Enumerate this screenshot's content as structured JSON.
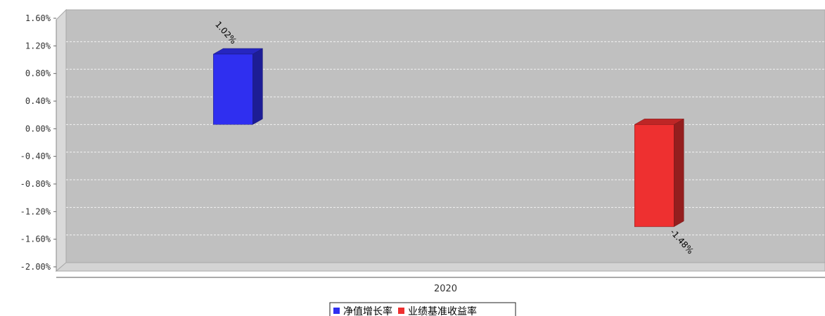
{
  "chart_data": {
    "type": "bar",
    "categories": [
      "2020"
    ],
    "series": [
      {
        "name": "净值增长率",
        "values": [
          1.02
        ],
        "color": "#2f2ff0",
        "label": "1.02%"
      },
      {
        "name": "业绩基准收益率",
        "values": [
          -1.48
        ],
        "color": "#ee3030",
        "label": "-1.48%"
      }
    ],
    "ylim": [
      -2.0,
      1.6
    ],
    "yticks": [
      {
        "value": 1.6,
        "label": "1.60%"
      },
      {
        "value": 1.2,
        "label": "1.20%"
      },
      {
        "value": 0.8,
        "label": "0.80%"
      },
      {
        "value": 0.4,
        "label": "0.40%"
      },
      {
        "value": 0.0,
        "label": "0.00%"
      },
      {
        "value": -0.4,
        "label": "-0.40%"
      },
      {
        "value": -0.8,
        "label": "-0.80%"
      },
      {
        "value": -1.2,
        "label": "-1.20%"
      },
      {
        "value": -1.6,
        "label": "-1.60%"
      },
      {
        "value": -2.0,
        "label": "-2.00%"
      }
    ],
    "grid": true,
    "legend_position": "bottom",
    "background": "#c0c0c0",
    "render_style": "3d"
  }
}
